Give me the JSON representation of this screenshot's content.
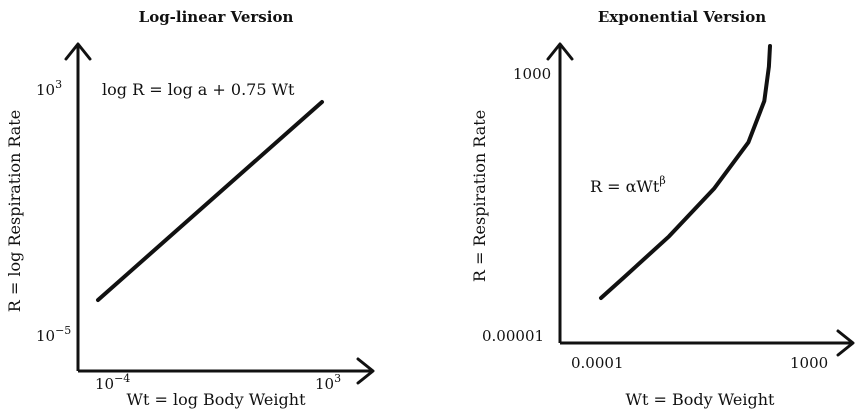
{
  "chart_data": [
    {
      "type": "line",
      "title": "Log-linear Version",
      "xlabel": "Wt = log Body Weight",
      "ylabel": "R = log Respiration Rate",
      "x_ticks": [
        {
          "base": "10",
          "exp": "−4"
        },
        {
          "base": "10",
          "exp": "3"
        }
      ],
      "y_ticks": [
        {
          "base": "10",
          "exp": "3"
        },
        {
          "base": "10",
          "exp": "−5"
        }
      ],
      "annotation": "log R = log a + 0.75 Wt",
      "series": [
        {
          "x": [
            0.0001,
            1000
          ],
          "y": [
            2e-05,
            500
          ]
        }
      ]
    },
    {
      "type": "line",
      "title": "Exponential Version",
      "xlabel": "Wt = Body Weight",
      "ylabel": "R = Respiration Rate",
      "x_ticks": [
        "0.0001",
        "1000"
      ],
      "y_ticks": [
        "1000",
        "0.00001"
      ],
      "annotation": {
        "base": "R = αWt",
        "exp": "β"
      },
      "series": [
        {
          "x": [
            0.0001,
            100,
            300,
            500,
            650,
            720,
            740,
            745
          ],
          "y": [
            1,
            90,
            270,
            480,
            680,
            860,
            1010,
            1100
          ]
        }
      ]
    }
  ]
}
